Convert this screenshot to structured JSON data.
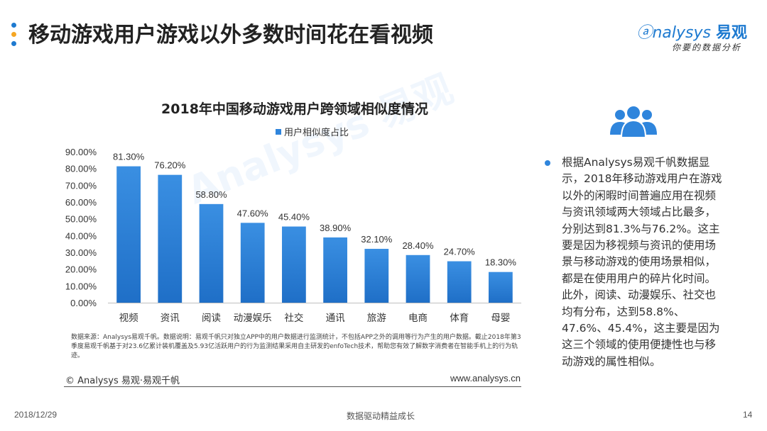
{
  "slide": {
    "title": "移动游戏用户游戏以外多数时间花在看视频",
    "logo": {
      "brand": "nalysys",
      "brand_cn": "易观",
      "tagline": "你要的数据分析"
    },
    "accent_colors": [
      "#1e7ad0",
      "#f5a623",
      "#1e7ad0"
    ]
  },
  "chart_data": {
    "type": "bar",
    "title": "2018年中国移动游戏用户跨领域相似度情况",
    "series": [
      {
        "name": "用户相似度占比",
        "color": "#2f85dc",
        "values": [
          81.3,
          76.2,
          58.8,
          47.6,
          45.4,
          38.9,
          32.1,
          28.4,
          24.7,
          18.3
        ],
        "labels": [
          "81.30%",
          "76.20%",
          "58.80%",
          "47.60%",
          "45.40%",
          "38.90%",
          "32.10%",
          "28.40%",
          "24.70%",
          "18.30%"
        ]
      }
    ],
    "categories": [
      "视频",
      "资讯",
      "阅读",
      "动漫娱乐",
      "社交",
      "通讯",
      "旅游",
      "电商",
      "体育",
      "母婴"
    ],
    "ylim": [
      0,
      90
    ],
    "yticks": [
      "0.00%",
      "10.00%",
      "20.00%",
      "30.00%",
      "40.00%",
      "50.00%",
      "60.00%",
      "70.00%",
      "80.00%",
      "90.00%"
    ],
    "legend_position": "top-center",
    "grid": false
  },
  "notes": {
    "source": "数据来源：Analysys易观千帆。数据说明：易观千帆只对独立APP中的用户数据进行监测统计，不包括APP之外的调用等行为产生的用户数据。截止2018年第3季度易观千帆基于对23.6亿累计装机覆盖及5.93亿活跃用户的行为监测结果采用自主研发的enfoTech技术，帮助您有效了解数字消费者在智能手机上的行为轨迹。",
    "copyright": "© Analysys 易观·易观千帆",
    "website": "www.analysys.cn"
  },
  "summary": {
    "text": "根据Analysys易观千帆数据显示，2018年移动游戏用户在游戏以外的闲暇时间普遍应用在视频与资讯领域两大领域占比最多，分别达到81.3%与76.2%。这主要是因为移视频与资讯的使用场景与移动游戏的使用场景相似，都是在使用用户的碎片化时间。此外，阅读、动漫娱乐、社交也均有分布，达到58.8%、47.6%、45.4%，这主要是因为这三个领域的使用便捷性也与移动游戏的属性相似。"
  },
  "footer": {
    "date": "2018/12/29",
    "center": "数据驱动精益成长",
    "page": "14"
  }
}
